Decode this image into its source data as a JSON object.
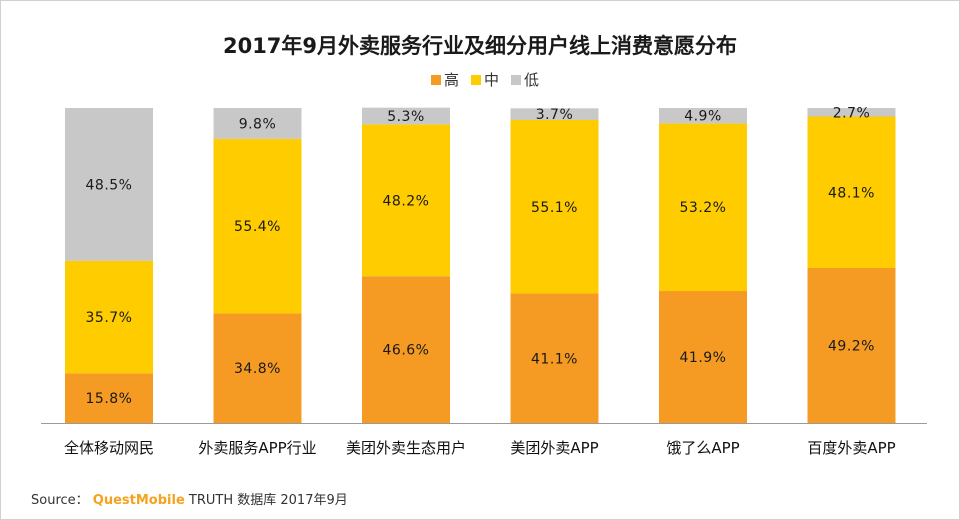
{
  "chart_data": {
    "type": "bar",
    "stacked": true,
    "percent": true,
    "title": "2017年9月外卖服务行业及细分用户线上消费意愿分布",
    "categories": [
      "全体移动网民",
      "外卖服务APP行业",
      "美团外卖生态用户",
      "美团外卖APP",
      "饿了么APP",
      "百度外卖APP"
    ],
    "series": [
      {
        "name": "高",
        "color": "#F59B23",
        "values": [
          15.8,
          34.8,
          46.6,
          41.1,
          41.9,
          49.2
        ]
      },
      {
        "name": "中",
        "color": "#FFCC00",
        "values": [
          35.7,
          55.4,
          48.2,
          55.1,
          53.2,
          48.1
        ]
      },
      {
        "name": "低",
        "color": "#C8C8C8",
        "values": [
          48.5,
          9.8,
          5.3,
          3.7,
          4.9,
          2.7
        ]
      }
    ],
    "ylim": [
      0,
      100
    ],
    "legend_position": "top-center",
    "grid": false
  },
  "source": {
    "prefix": "Source：",
    "brand": "QuestMobile",
    "rest": " TRUTH 数据库 2017年9月"
  }
}
